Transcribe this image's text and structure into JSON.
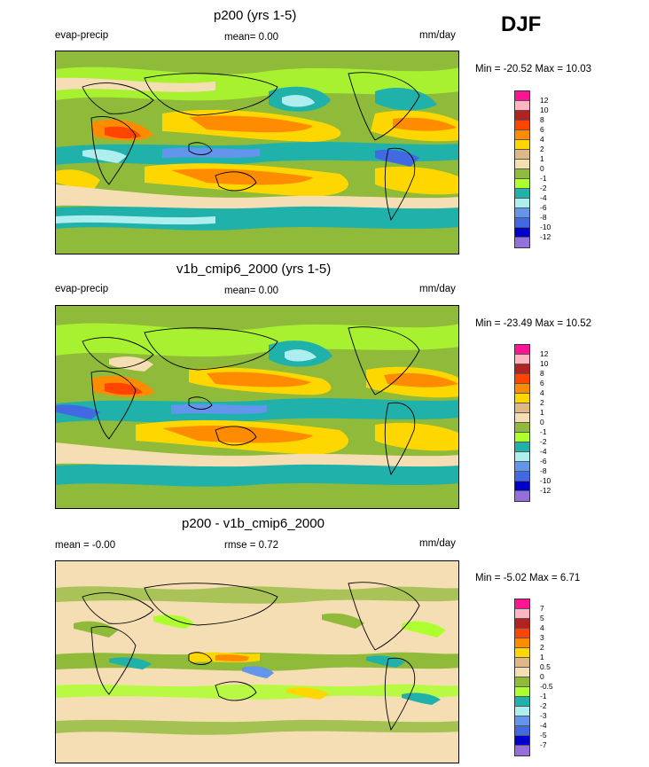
{
  "season": "DJF",
  "panels": [
    {
      "title": "p200 (yrs 1-5)",
      "left": "evap-precip",
      "center": "mean=   0.00",
      "right": "mm/day",
      "minmax": "Min = -20.52 Max =  10.03",
      "colorbar": {
        "labels": [
          "12",
          "10",
          "8",
          "6",
          "4",
          "2",
          "1",
          "0",
          "-1",
          "-2",
          "-4",
          "-6",
          "-8",
          "-10",
          "-12"
        ],
        "colors": [
          "#ff1493",
          "#ffb6c1",
          "#b22222",
          "#ff4500",
          "#ff8c00",
          "#ffd700",
          "#deb887",
          "#f5deb3",
          "#8fba3a",
          "#adff2f",
          "#20b2aa",
          "#afeeee",
          "#6495ed",
          "#4169e1",
          "#0000cd",
          "#9370db"
        ]
      }
    },
    {
      "title": "v1b_cmip6_2000 (yrs 1-5)",
      "left": "evap-precip",
      "center": "mean=   0.00",
      "right": "mm/day",
      "minmax": "Min = -23.49 Max =  10.52",
      "colorbar": {
        "labels": [
          "12",
          "10",
          "8",
          "6",
          "4",
          "2",
          "1",
          "0",
          "-1",
          "-2",
          "-4",
          "-6",
          "-8",
          "-10",
          "-12"
        ],
        "colors": [
          "#ff1493",
          "#ffb6c1",
          "#b22222",
          "#ff4500",
          "#ff8c00",
          "#ffd700",
          "#deb887",
          "#f5deb3",
          "#8fba3a",
          "#adff2f",
          "#20b2aa",
          "#afeeee",
          "#6495ed",
          "#4169e1",
          "#0000cd",
          "#9370db"
        ]
      }
    },
    {
      "title": "p200 - v1b_cmip6_2000",
      "left": "mean =  -0.00",
      "center": "rmse =   0.72",
      "right": "mm/day",
      "minmax": "Min =  -5.02 Max =   6.71",
      "colorbar": {
        "labels": [
          "7",
          "5",
          "4",
          "3",
          "2",
          "1",
          "0.5",
          "0",
          "-0.5",
          "-1",
          "-2",
          "-3",
          "-4",
          "-5",
          "-7"
        ],
        "colors": [
          "#ff1493",
          "#ffb6c1",
          "#b22222",
          "#ff4500",
          "#ff8c00",
          "#ffd700",
          "#deb887",
          "#f5deb3",
          "#8fba3a",
          "#adff2f",
          "#20b2aa",
          "#afeeee",
          "#6495ed",
          "#4169e1",
          "#0000cd",
          "#9370db"
        ]
      }
    }
  ]
}
